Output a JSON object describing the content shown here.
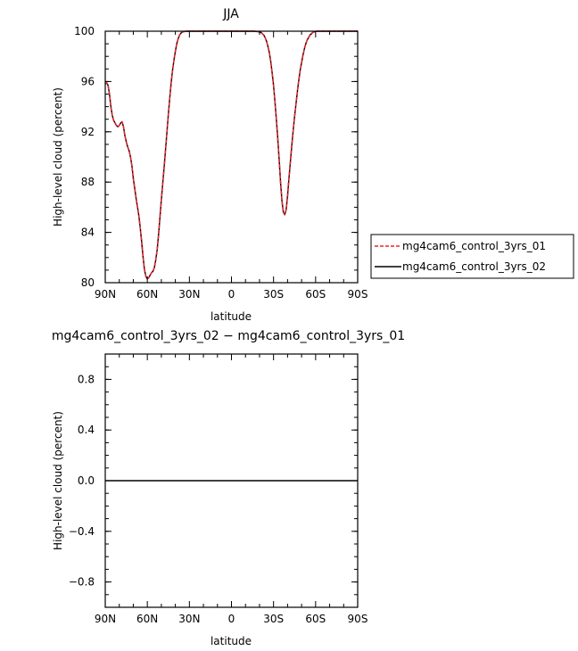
{
  "chart_data": [
    {
      "type": "line",
      "title": "JJA",
      "xlabel": "latitude",
      "ylabel": "High-level cloud (percent)",
      "xlim": [
        90,
        -90
      ],
      "ylim": [
        80,
        100
      ],
      "x_ticks": [
        90,
        60,
        30,
        0,
        -30,
        -60,
        -90
      ],
      "x_tick_labels": [
        "90N",
        "60N",
        "30N",
        "0",
        "30S",
        "60S",
        "90S"
      ],
      "y_ticks": [
        80,
        84,
        88,
        92,
        96,
        100
      ],
      "y_tick_labels": [
        "80",
        "84",
        "88",
        "92",
        "96",
        "100"
      ],
      "legend": "right",
      "series": [
        {
          "name": "mg4cam6_control_3yrs_01",
          "color": "#e8252b",
          "style": "dashed",
          "x": [
            90,
            89,
            88,
            87,
            86,
            85,
            84,
            83,
            82,
            81,
            80,
            79,
            78,
            77,
            76,
            75,
            74,
            73,
            72,
            71,
            70,
            69,
            68,
            67,
            66,
            65,
            64,
            63,
            62,
            61,
            60,
            59,
            58,
            57,
            56,
            55,
            54,
            53,
            52,
            51,
            50,
            49,
            48,
            47,
            46,
            45,
            44,
            43,
            42,
            41,
            40,
            39,
            38,
            37,
            36,
            35,
            34,
            33,
            32,
            31,
            30,
            28,
            26,
            24,
            22,
            20,
            18,
            16,
            14,
            12,
            10,
            8,
            6,
            4,
            2,
            0,
            -2,
            -4,
            -6,
            -8,
            -10,
            -12,
            -14,
            -16,
            -18,
            -20,
            -21,
            -22,
            -23,
            -24,
            -25,
            -26,
            -27,
            -28,
            -29,
            -30,
            -31,
            -32,
            -33,
            -34,
            -35,
            -36,
            -37,
            -38,
            -39,
            -40,
            -41,
            -42,
            -43,
            -44,
            -45,
            -46,
            -47,
            -48,
            -49,
            -50,
            -51,
            -52,
            -53,
            -54,
            -55,
            -56,
            -57,
            -58,
            -59,
            -60,
            -61,
            -62,
            -64,
            -66,
            -68,
            -70,
            -75,
            -80,
            -85,
            -90
          ],
          "values": [
            95.8,
            95.9,
            95.7,
            95.0,
            94.0,
            93.3,
            92.9,
            92.7,
            92.5,
            92.4,
            92.5,
            92.7,
            92.8,
            92.4,
            91.7,
            91.2,
            90.8,
            90.5,
            90.0,
            89.3,
            88.3,
            87.5,
            86.7,
            86.0,
            85.3,
            84.3,
            83.2,
            82.0,
            81.0,
            80.5,
            80.3,
            80.4,
            80.6,
            80.8,
            80.9,
            81.2,
            81.8,
            82.6,
            83.8,
            85.2,
            86.6,
            87.9,
            89.2,
            90.6,
            92.0,
            93.4,
            94.7,
            95.9,
            96.9,
            97.7,
            98.4,
            99.0,
            99.4,
            99.7,
            99.85,
            99.93,
            99.97,
            99.99,
            100.0,
            100.0,
            100.0,
            100.0,
            100.0,
            100.0,
            100.0,
            100.0,
            100.0,
            100.0,
            100.0,
            100.0,
            100.0,
            100.0,
            100.0,
            100.0,
            100.0,
            100.0,
            100.0,
            100.0,
            100.0,
            100.0,
            100.0,
            100.0,
            100.0,
            100.0,
            99.98,
            99.95,
            99.9,
            99.8,
            99.7,
            99.5,
            99.2,
            98.8,
            98.3,
            97.6,
            96.7,
            95.7,
            94.4,
            93.0,
            91.5,
            89.8,
            88.0,
            86.5,
            85.6,
            85.4,
            85.8,
            86.9,
            88.3,
            89.6,
            90.9,
            92.1,
            93.2,
            94.2,
            95.2,
            96.1,
            96.9,
            97.5,
            98.1,
            98.6,
            99.0,
            99.3,
            99.5,
            99.7,
            99.8,
            99.9,
            99.95,
            99.98,
            100.0,
            100.0,
            100.0,
            100.0,
            100.0,
            100.0,
            100.0,
            100.0,
            100.0,
            100.0
          ]
        },
        {
          "name": "mg4cam6_control_3yrs_02",
          "color": "#000000",
          "style": "solid",
          "same_values_as": 0
        }
      ]
    },
    {
      "type": "line",
      "title": "mg4cam6_control_3yrs_02 − mg4cam6_control_3yrs_01",
      "xlabel": "latitude",
      "ylabel": "High-level cloud (percent)",
      "xlim": [
        90,
        -90
      ],
      "ylim": [
        -1,
        1
      ],
      "x_ticks": [
        90,
        60,
        30,
        0,
        -30,
        -60,
        -90
      ],
      "x_tick_labels": [
        "90N",
        "60N",
        "30N",
        "0",
        "30S",
        "60S",
        "90S"
      ],
      "y_ticks": [
        -0.8,
        -0.4,
        0.0,
        0.4,
        0.8
      ],
      "y_tick_labels": [
        "−0.8",
        "−0.4",
        "0.0",
        "0.4",
        "0.8"
      ],
      "series": [
        {
          "color": "#000000",
          "style": "solid",
          "x": [
            90,
            -90
          ],
          "values": [
            0,
            0
          ]
        }
      ]
    }
  ]
}
